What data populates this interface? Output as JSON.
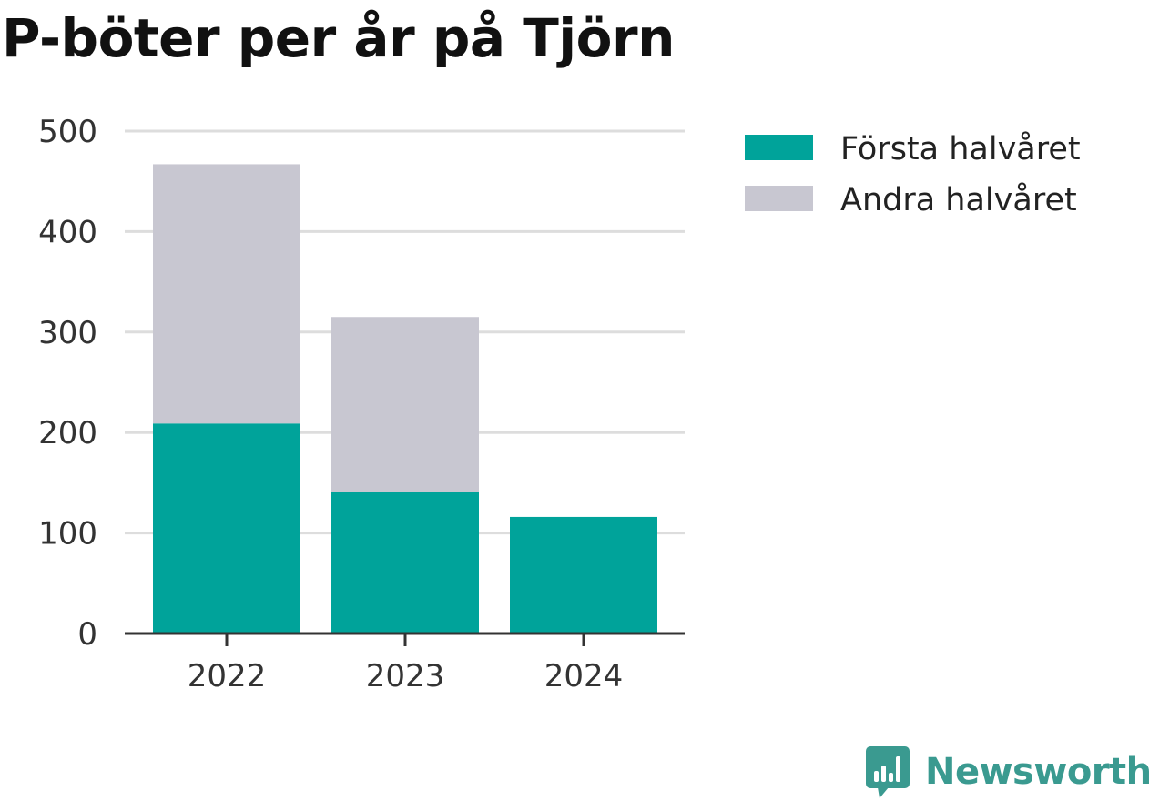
{
  "title": "P-böter per år på Tjörn",
  "brand": {
    "name": "Newsworthy",
    "icon": "newsworthy-bar-chart-bubble-icon",
    "color": "#3a9a90"
  },
  "chart_data": {
    "type": "bar",
    "stacked": true,
    "categories": [
      "2022",
      "2023",
      "2024"
    ],
    "series": [
      {
        "name": "Första halvåret",
        "color": "#00a39a",
        "values": [
          209,
          141,
          116
        ]
      },
      {
        "name": "Andra halvåret",
        "color": "#c8c7d1",
        "values": [
          258,
          174,
          null
        ]
      }
    ],
    "ylim": [
      0,
      500
    ],
    "yticks": [
      0,
      100,
      200,
      300,
      400,
      500
    ],
    "grid": true,
    "legend": "top-right",
    "title": "P-böter per år på Tjörn",
    "xlabel": "",
    "ylabel": ""
  }
}
